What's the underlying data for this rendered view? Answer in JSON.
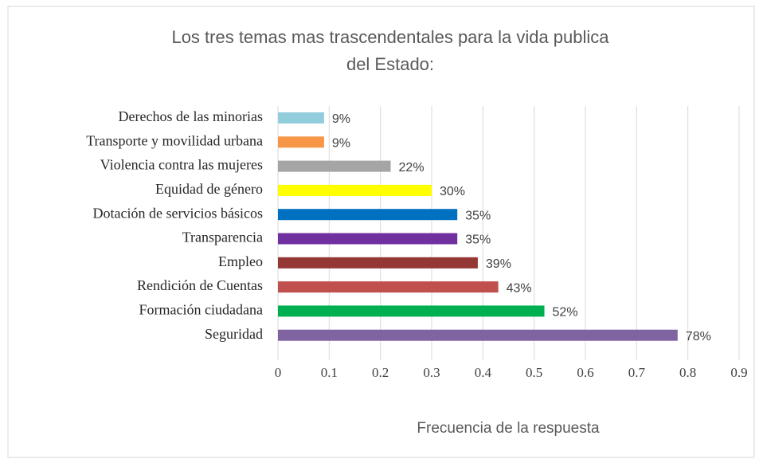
{
  "chart_data": {
    "type": "barh",
    "title": "Los tres temas mas trascendentales para la vida publica del Estado:",
    "xlabel": "Frecuencia de la respuesta",
    "categories": [
      "Derechos de las minorias",
      "Transporte y movilidad urbana",
      "Violencia contra las mujeres",
      "Equidad de género",
      "Dotación de servicios básicos",
      "Transparencia",
      "Empleo",
      "Rendición de Cuentas",
      "Formación ciudadana",
      "Seguridad"
    ],
    "values": [
      0.09,
      0.09,
      0.22,
      0.3,
      0.35,
      0.35,
      0.39,
      0.43,
      0.52,
      0.78
    ],
    "value_labels": [
      "9%",
      "9%",
      "22%",
      "30%",
      "35%",
      "35%",
      "39%",
      "43%",
      "52%",
      "78%"
    ],
    "colors": [
      "#92cddc",
      "#f79646",
      "#a5a5a5",
      "#ffff00",
      "#0070c0",
      "#7030a0",
      "#953735",
      "#c0504d",
      "#00b050",
      "#8064a2"
    ],
    "xlim": [
      0,
      0.9
    ],
    "xticks": [
      0,
      0.1,
      0.2,
      0.3,
      0.4,
      0.5,
      0.6,
      0.7,
      0.8,
      0.9
    ],
    "grid": true
  }
}
